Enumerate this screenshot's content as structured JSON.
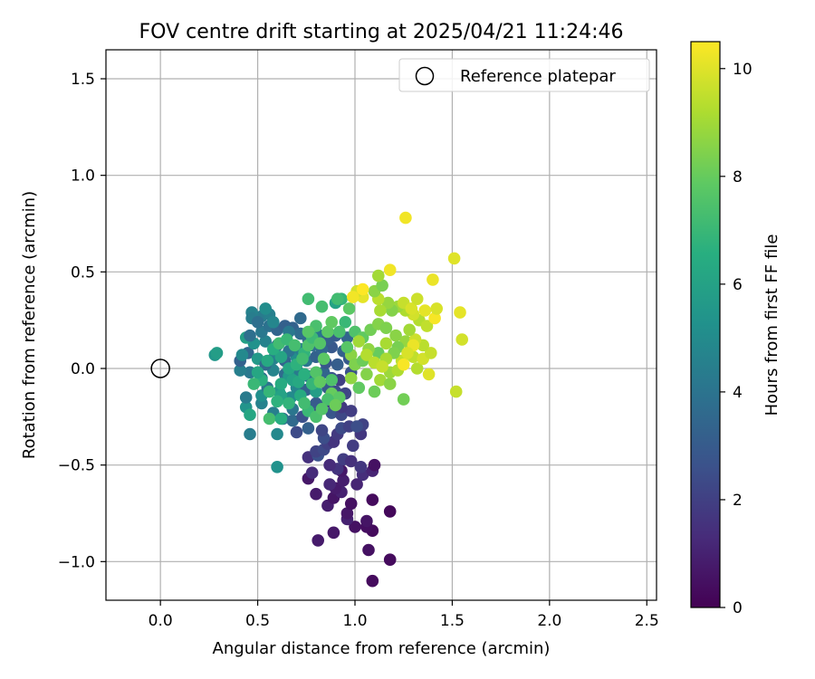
{
  "chart_data": {
    "type": "scatter",
    "title": "FOV centre drift starting at 2025/04/21 11:24:46",
    "xlabel": "Angular distance from reference (arcmin)",
    "ylabel": "Rotation from reference (arcmin)",
    "xlim": [
      -0.28,
      2.55
    ],
    "ylim": [
      -1.2,
      1.65
    ],
    "x_ticks": [
      0.0,
      0.5,
      1.0,
      1.5,
      2.0,
      2.5
    ],
    "x_tick_labels": [
      "0.0",
      "0.5",
      "1.0",
      "1.5",
      "2.0",
      "2.5"
    ],
    "y_ticks": [
      -1.0,
      -0.5,
      0.0,
      0.5,
      1.0,
      1.5
    ],
    "y_tick_labels": [
      "−1.0",
      "−0.5",
      "0.0",
      "0.5",
      "1.0",
      "1.5"
    ],
    "grid": true,
    "legend": {
      "placement": "top-right",
      "entries": [
        {
          "label": "Reference platepar",
          "marker": "open-circle",
          "color": "#000000"
        }
      ]
    },
    "reference_point": {
      "x": 0.0,
      "y": 0.0
    },
    "colorbar": {
      "label": "Hours from first FF file",
      "range": [
        0,
        10.5
      ],
      "ticks": [
        0,
        2,
        4,
        6,
        8,
        10
      ],
      "tick_labels": [
        "0",
        "2",
        "4",
        "6",
        "8",
        "10"
      ],
      "colormap": "viridis"
    },
    "points": [
      [
        1.09,
        -1.1,
        0.3
      ],
      [
        1.18,
        -0.99,
        0.3
      ],
      [
        1.07,
        -0.94,
        0.5
      ],
      [
        0.81,
        -0.89,
        0.8
      ],
      [
        0.89,
        -0.85,
        0.7
      ],
      [
        1.09,
        -0.84,
        0.3
      ],
      [
        1.06,
        -0.82,
        0.4
      ],
      [
        1.0,
        -0.82,
        0.5
      ],
      [
        1.06,
        -0.79,
        0.6
      ],
      [
        0.96,
        -0.78,
        1.0
      ],
      [
        1.18,
        -0.74,
        0.2
      ],
      [
        0.96,
        -0.75,
        0.7
      ],
      [
        0.86,
        -0.71,
        0.9
      ],
      [
        0.98,
        -0.7,
        0.5
      ],
      [
        1.09,
        -0.68,
        0.3
      ],
      [
        0.8,
        -0.65,
        0.8
      ],
      [
        0.89,
        -0.67,
        0.6
      ],
      [
        0.93,
        -0.64,
        1.0
      ],
      [
        0.9,
        -0.62,
        0.8
      ],
      [
        1.01,
        -0.6,
        1.1
      ],
      [
        0.94,
        -0.58,
        0.9
      ],
      [
        0.87,
        -0.6,
        1.2
      ],
      [
        0.76,
        -0.57,
        0.7
      ],
      [
        0.78,
        -0.54,
        1.3
      ],
      [
        0.93,
        -0.53,
        0.7
      ],
      [
        1.04,
        -0.55,
        1.4
      ],
      [
        0.91,
        -0.52,
        1.6
      ],
      [
        1.09,
        -0.53,
        1.1
      ],
      [
        1.1,
        -0.5,
        0.5
      ],
      [
        0.87,
        -0.5,
        1.3
      ],
      [
        0.94,
        -0.47,
        1.9
      ],
      [
        0.98,
        -0.48,
        1.5
      ],
      [
        1.03,
        -0.51,
        1.7
      ],
      [
        0.76,
        -0.46,
        1.5
      ],
      [
        0.81,
        -0.45,
        2.6
      ],
      [
        0.8,
        -0.43,
        2.1
      ],
      [
        0.84,
        -0.42,
        2.3
      ],
      [
        0.86,
        -0.39,
        2.0
      ],
      [
        0.89,
        -0.38,
        1.6
      ],
      [
        0.99,
        -0.4,
        1.9
      ],
      [
        0.84,
        -0.36,
        2.5
      ],
      [
        0.91,
        -0.34,
        1.8
      ],
      [
        1.03,
        -0.34,
        1.7
      ],
      [
        0.7,
        -0.33,
        2.4
      ],
      [
        0.83,
        -0.32,
        2.2
      ],
      [
        0.93,
        -0.31,
        2.4
      ],
      [
        0.97,
        -0.3,
        2.0
      ],
      [
        1.04,
        -0.29,
        2.1
      ],
      [
        1.01,
        -0.3,
        2.5
      ],
      [
        0.76,
        -0.31,
        3.2
      ],
      [
        0.6,
        -0.34,
        4.9
      ],
      [
        0.6,
        -0.51,
        5.3
      ],
      [
        0.46,
        -0.34,
        4.4
      ],
      [
        0.63,
        -0.26,
        3.8
      ],
      [
        0.68,
        -0.27,
        3.6
      ],
      [
        0.73,
        -0.25,
        2.6
      ],
      [
        0.8,
        -0.24,
        2.2
      ],
      [
        0.88,
        -0.23,
        2.8
      ],
      [
        0.93,
        -0.24,
        2.3
      ],
      [
        0.98,
        -0.22,
        1.9
      ],
      [
        0.93,
        -0.2,
        1.8
      ],
      [
        0.86,
        -0.17,
        2.1
      ],
      [
        0.8,
        -0.18,
        3.0
      ],
      [
        0.68,
        -0.21,
        4.1
      ],
      [
        0.58,
        -0.23,
        4.5
      ],
      [
        0.52,
        -0.18,
        4.6
      ],
      [
        0.44,
        -0.2,
        5.4
      ],
      [
        0.46,
        -0.24,
        6.2
      ],
      [
        0.44,
        -0.15,
        4.3
      ],
      [
        0.52,
        -0.14,
        5.2
      ],
      [
        0.55,
        -0.1,
        4.1
      ],
      [
        0.61,
        -0.12,
        5.5
      ],
      [
        0.67,
        -0.15,
        5.0
      ],
      [
        0.7,
        -0.1,
        4.8
      ],
      [
        0.75,
        -0.11,
        3.3
      ],
      [
        0.8,
        -0.12,
        5.8
      ],
      [
        0.86,
        -0.1,
        3.0
      ],
      [
        0.9,
        -0.12,
        2.5
      ],
      [
        0.95,
        -0.13,
        2.2
      ],
      [
        0.92,
        -0.06,
        2.0
      ],
      [
        0.88,
        -0.05,
        2.7
      ],
      [
        0.84,
        -0.02,
        3.4
      ],
      [
        0.76,
        -0.04,
        3.9
      ],
      [
        0.71,
        -0.02,
        4.3
      ],
      [
        0.64,
        -0.03,
        3.7
      ],
      [
        0.58,
        -0.01,
        4.7
      ],
      [
        0.52,
        -0.05,
        3.9
      ],
      [
        0.46,
        -0.02,
        4.2
      ],
      [
        0.41,
        -0.01,
        4.5
      ],
      [
        0.41,
        0.04,
        3.3
      ],
      [
        0.45,
        0.08,
        3.5
      ],
      [
        0.42,
        0.07,
        4.9
      ],
      [
        0.5,
        0.05,
        5.6
      ],
      [
        0.54,
        0.02,
        3.6
      ],
      [
        0.58,
        0.05,
        4.6
      ],
      [
        0.64,
        0.04,
        3.4
      ],
      [
        0.7,
        0.06,
        5.1
      ],
      [
        0.75,
        0.04,
        4.1
      ],
      [
        0.8,
        0.06,
        3.3
      ],
      [
        0.85,
        0.03,
        2.8
      ],
      [
        0.91,
        0.02,
        3.1
      ],
      [
        0.97,
        0.05,
        2.9
      ],
      [
        0.98,
        -0.02,
        2.6
      ],
      [
        0.94,
        0.09,
        3.2
      ],
      [
        0.88,
        0.11,
        2.9
      ],
      [
        0.83,
        0.1,
        3.5
      ],
      [
        0.78,
        0.12,
        3.8
      ],
      [
        0.72,
        0.1,
        4.4
      ],
      [
        0.66,
        0.09,
        4.0
      ],
      [
        0.6,
        0.12,
        3.7
      ],
      [
        0.54,
        0.14,
        4.6
      ],
      [
        0.48,
        0.13,
        5.3
      ],
      [
        0.44,
        0.16,
        5.9
      ],
      [
        0.46,
        0.17,
        3.8
      ],
      [
        0.52,
        0.19,
        4.2
      ],
      [
        0.56,
        0.22,
        3.9
      ],
      [
        0.6,
        0.2,
        3.4
      ],
      [
        0.64,
        0.22,
        3.2
      ],
      [
        0.68,
        0.21,
        3.3
      ],
      [
        0.72,
        0.18,
        3.7
      ],
      [
        0.76,
        0.15,
        3.6
      ],
      [
        0.82,
        0.17,
        4.0
      ],
      [
        0.86,
        0.15,
        3.1
      ],
      [
        0.9,
        0.17,
        3.0
      ],
      [
        0.96,
        0.16,
        3.4
      ],
      [
        0.52,
        0.27,
        4.3
      ],
      [
        0.56,
        0.28,
        4.5
      ],
      [
        0.54,
        0.31,
        5.1
      ],
      [
        0.47,
        0.29,
        4.6
      ],
      [
        0.47,
        0.26,
        4.4
      ],
      [
        0.5,
        0.24,
        3.8
      ],
      [
        0.58,
        0.24,
        4.8
      ],
      [
        0.66,
        0.19,
        4.2
      ],
      [
        0.72,
        0.26,
        3.6
      ],
      [
        0.28,
        0.07,
        5.5
      ],
      [
        0.29,
        0.08,
        5.8
      ],
      [
        0.66,
        -0.04,
        5.6
      ],
      [
        0.62,
        -0.08,
        6.4
      ],
      [
        0.68,
        -0.06,
        6.0
      ],
      [
        0.71,
        -0.07,
        6.3
      ],
      [
        0.74,
        -0.03,
        6.6
      ],
      [
        0.78,
        -0.08,
        6.9
      ],
      [
        0.66,
        0.0,
        6.2
      ],
      [
        0.7,
        0.02,
        6.7
      ],
      [
        0.74,
        0.08,
        6.8
      ],
      [
        0.62,
        0.06,
        6.1
      ],
      [
        0.58,
        0.1,
        6.5
      ],
      [
        0.55,
        0.04,
        6.3
      ],
      [
        0.62,
        -0.14,
        6.0
      ],
      [
        0.66,
        -0.18,
        6.8
      ],
      [
        0.72,
        -0.14,
        6.4
      ],
      [
        0.6,
        -0.17,
        6.7
      ],
      [
        0.56,
        -0.12,
        6.9
      ],
      [
        0.52,
        -0.06,
        6.6
      ],
      [
        0.48,
        -0.08,
        7.0
      ],
      [
        0.5,
        -0.02,
        6.2
      ],
      [
        0.76,
        -0.22,
        7.0
      ],
      [
        0.8,
        -0.25,
        7.4
      ],
      [
        0.74,
        -0.18,
        7.2
      ],
      [
        0.56,
        -0.26,
        7.3
      ],
      [
        0.62,
        -0.26,
        6.5
      ],
      [
        0.61,
        0.13,
        7.2
      ],
      [
        0.65,
        0.15,
        7.0
      ],
      [
        0.69,
        0.12,
        7.3
      ],
      [
        0.76,
        0.12,
        7.5
      ],
      [
        0.78,
        0.16,
        7.1
      ],
      [
        0.82,
        0.13,
        7.6
      ],
      [
        0.86,
        0.19,
        7.8
      ],
      [
        0.8,
        0.22,
        7.4
      ],
      [
        0.76,
        0.19,
        7.7
      ],
      [
        0.73,
        0.05,
        7.2
      ],
      [
        0.8,
        -0.02,
        7.6
      ],
      [
        0.84,
        0.05,
        7.8
      ],
      [
        0.88,
        -0.06,
        7.5
      ],
      [
        0.82,
        -0.07,
        7.9
      ],
      [
        0.88,
        -0.13,
        8.0
      ],
      [
        0.92,
        -0.15,
        7.8
      ],
      [
        0.86,
        -0.16,
        7.4
      ],
      [
        0.9,
        -0.19,
        8.1
      ],
      [
        0.83,
        -0.21,
        7.6
      ],
      [
        0.88,
        0.24,
        7.9
      ],
      [
        0.83,
        0.32,
        7.3
      ],
      [
        0.76,
        0.36,
        7.2
      ],
      [
        0.93,
        0.36,
        6.9
      ],
      [
        0.97,
        0.31,
        7.8
      ],
      [
        1.0,
        0.19,
        7.5
      ],
      [
        1.04,
        0.16,
        7.9
      ],
      [
        1.08,
        0.2,
        8.2
      ],
      [
        1.12,
        0.23,
        8.5
      ],
      [
        1.16,
        0.21,
        8.4
      ],
      [
        1.21,
        0.17,
        8.6
      ],
      [
        1.26,
        0.14,
        8.8
      ],
      [
        1.22,
        0.11,
        8.3
      ],
      [
        1.16,
        0.13,
        9.1
      ],
      [
        1.12,
        0.08,
        8.0
      ],
      [
        1.07,
        0.1,
        8.7
      ],
      [
        1.02,
        0.14,
        9.0
      ],
      [
        0.98,
        0.07,
        8.6
      ],
      [
        1.0,
        0.02,
        8.4
      ],
      [
        1.04,
        0.04,
        8.1
      ],
      [
        1.06,
        0.07,
        9.3
      ],
      [
        0.98,
        -0.05,
        8.7
      ],
      [
        1.06,
        -0.03,
        8.5
      ],
      [
        1.1,
        -0.12,
        8.1
      ],
      [
        1.13,
        -0.06,
        9.0
      ],
      [
        1.18,
        -0.08,
        8.6
      ],
      [
        1.18,
        -0.02,
        8.9
      ],
      [
        1.22,
        -0.01,
        9.2
      ],
      [
        1.24,
        0.04,
        9.5
      ],
      [
        1.2,
        0.08,
        8.4
      ],
      [
        1.16,
        0.05,
        9.1
      ],
      [
        1.1,
        0.03,
        9.4
      ],
      [
        1.14,
        0.01,
        9.6
      ],
      [
        1.25,
        -0.16,
        8.2
      ],
      [
        1.32,
        0.0,
        9.3
      ],
      [
        1.3,
        0.06,
        9.5
      ],
      [
        1.35,
        0.05,
        9.8
      ],
      [
        1.39,
        0.08,
        9.6
      ],
      [
        1.35,
        0.12,
        9.4
      ],
      [
        1.31,
        0.15,
        9.7
      ],
      [
        1.28,
        0.2,
        9.0
      ],
      [
        1.33,
        0.25,
        9.3
      ],
      [
        1.37,
        0.22,
        9.5
      ],
      [
        1.3,
        0.28,
        9.8
      ],
      [
        1.26,
        0.3,
        9.2
      ],
      [
        1.22,
        0.32,
        8.9
      ],
      [
        1.19,
        0.3,
        8.5
      ],
      [
        1.17,
        0.34,
        8.8
      ],
      [
        1.13,
        0.3,
        9.1
      ],
      [
        1.12,
        0.36,
        9.4
      ],
      [
        1.1,
        0.4,
        8.6
      ],
      [
        1.14,
        0.43,
        8.3
      ],
      [
        1.12,
        0.48,
        9.0
      ],
      [
        1.18,
        0.51,
        10.3
      ],
      [
        1.25,
        0.34,
        9.6
      ],
      [
        1.29,
        0.31,
        9.9
      ],
      [
        1.32,
        0.36,
        9.7
      ],
      [
        1.36,
        0.3,
        10.1
      ],
      [
        1.41,
        0.26,
        10.4
      ],
      [
        1.42,
        0.31,
        9.9
      ],
      [
        1.4,
        0.46,
        10.2
      ],
      [
        1.51,
        0.57,
        10.0
      ],
      [
        1.26,
        0.78,
        10.3
      ],
      [
        1.54,
        0.29,
        10.1
      ],
      [
        1.55,
        0.15,
        9.8
      ],
      [
        1.52,
        -0.12,
        9.6
      ],
      [
        1.38,
        -0.03,
        10.0
      ],
      [
        1.3,
        0.12,
        10.2
      ],
      [
        1.25,
        0.02,
        10.4
      ],
      [
        1.27,
        0.08,
        9.9
      ],
      [
        1.04,
        0.37,
        10.1
      ],
      [
        1.01,
        0.4,
        9.8
      ],
      [
        0.99,
        0.37,
        10.3
      ],
      [
        1.04,
        0.41,
        10.5
      ],
      [
        0.95,
        0.24,
        7.0
      ],
      [
        0.92,
        0.19,
        7.4
      ],
      [
        0.96,
        0.11,
        7.7
      ],
      [
        1.02,
        -0.1,
        7.9
      ],
      [
        0.9,
        0.34,
        6.0
      ],
      [
        0.91,
        0.36,
        7.2
      ]
    ]
  }
}
